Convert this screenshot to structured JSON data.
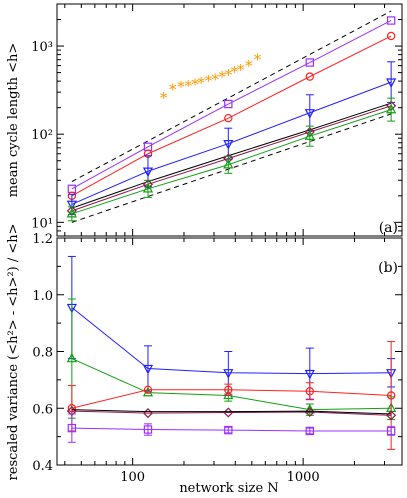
{
  "chart_data": [
    {
      "panel_label": "(a)",
      "type": "line",
      "ylabel": "mean cycle length <h>",
      "xscale": "log",
      "yscale": "log",
      "xlim": [
        36,
        3800
      ],
      "ylim": [
        7,
        3000
      ],
      "y_ticks": [
        10,
        100,
        1000
      ],
      "y_tick_labels": [
        "10¹",
        "10²",
        "10³"
      ],
      "x_tick_labels": [],
      "x": [
        44,
        123,
        364,
        1094,
        3282
      ],
      "guide_lines": [
        {
          "style": "dashed",
          "points": [
            [
              44,
              29
            ],
            [
              3282,
              2500
            ]
          ]
        },
        {
          "style": "dashed",
          "points": [
            [
              44,
              10
            ],
            [
              3282,
              170
            ]
          ]
        }
      ],
      "series": [
        {
          "color": "#9b30ff",
          "marker": "square",
          "values": [
            24,
            72,
            220,
            650,
            1950
          ]
        },
        {
          "color": "#ff2020",
          "marker": "circle",
          "values": [
            20,
            60,
            152,
            450,
            1300
          ]
        },
        {
          "color": "#2020ff",
          "marker": "triangle-down",
          "values": [
            16,
            38,
            78,
            175,
            390
          ],
          "err": [
            0.3,
            0.5,
            0.5,
            0.6,
            0.7
          ]
        },
        {
          "color": "#000000",
          "marker": "line-only",
          "values": [
            14.5,
            29,
            57,
            112,
            225
          ]
        },
        {
          "color": "#8b1a4a",
          "marker": "diamond",
          "values": [
            13.5,
            27,
            53,
            106,
            210
          ]
        },
        {
          "color": "#10a010",
          "marker": "triangle-up",
          "values": [
            12.5,
            24,
            45,
            95,
            190
          ],
          "err": [
            0.2,
            0.25,
            0.25,
            0.3,
            0.35
          ]
        }
      ],
      "scatter": {
        "color": "#ff9900",
        "marker": "star",
        "x": [
          152,
          172,
          192,
          212,
          232,
          252,
          278,
          305,
          335,
          365,
          395,
          430,
          480,
          540
        ],
        "y": [
          265,
          330,
          350,
          360,
          375,
          390,
          410,
          430,
          460,
          480,
          520,
          550,
          610,
          720
        ]
      }
    },
    {
      "panel_label": "(b)",
      "type": "line",
      "xlabel": "network size N",
      "ylabel": "rescaled variance (<h²> - <h>²) / <h>",
      "xscale": "log",
      "xlim": [
        36,
        3800
      ],
      "ylim": [
        0.4,
        1.2
      ],
      "y_ticks": [
        0.4,
        0.6,
        0.8,
        1.0,
        1.2
      ],
      "y_tick_labels": [
        "0.4",
        "0.6",
        "0.8",
        "1.0",
        "1.2"
      ],
      "x_ticks": [
        100,
        1000
      ],
      "x_tick_labels": [
        "100",
        "1000"
      ],
      "x": [
        44,
        123,
        364,
        1094,
        3282
      ],
      "series": [
        {
          "color": "#2020ff",
          "marker": "triangle-down",
          "values": [
            0.955,
            0.74,
            0.725,
            0.722,
            0.725
          ],
          "err": [
            0.18,
            0.08,
            0.075,
            0.09,
            0.05
          ]
        },
        {
          "color": "#10a010",
          "marker": "triangle-up",
          "values": [
            0.775,
            0.655,
            0.645,
            0.595,
            0.6
          ],
          "err": [
            0.21,
            0.0,
            0.02,
            0.02,
            0.04
          ]
        },
        {
          "color": "#ff2020",
          "marker": "circle",
          "values": [
            0.6,
            0.665,
            0.665,
            0.66,
            0.645
          ],
          "err": [
            0.08,
            0.0,
            0.02,
            0.03,
            0.19
          ]
        },
        {
          "color": "#8b1a4a",
          "marker": "diamond",
          "values": [
            0.59,
            0.583,
            0.585,
            0.587,
            0.575
          ]
        },
        {
          "color": "#000000",
          "marker": "line-only",
          "values": [
            0.595,
            0.588,
            0.588,
            0.59,
            0.58
          ]
        },
        {
          "color": "#9b30ff",
          "marker": "square",
          "values": [
            0.53,
            0.525,
            0.523,
            0.52,
            0.52
          ],
          "err": [
            0.05,
            0.02,
            0.01,
            0.01,
            0.015
          ]
        }
      ]
    }
  ]
}
